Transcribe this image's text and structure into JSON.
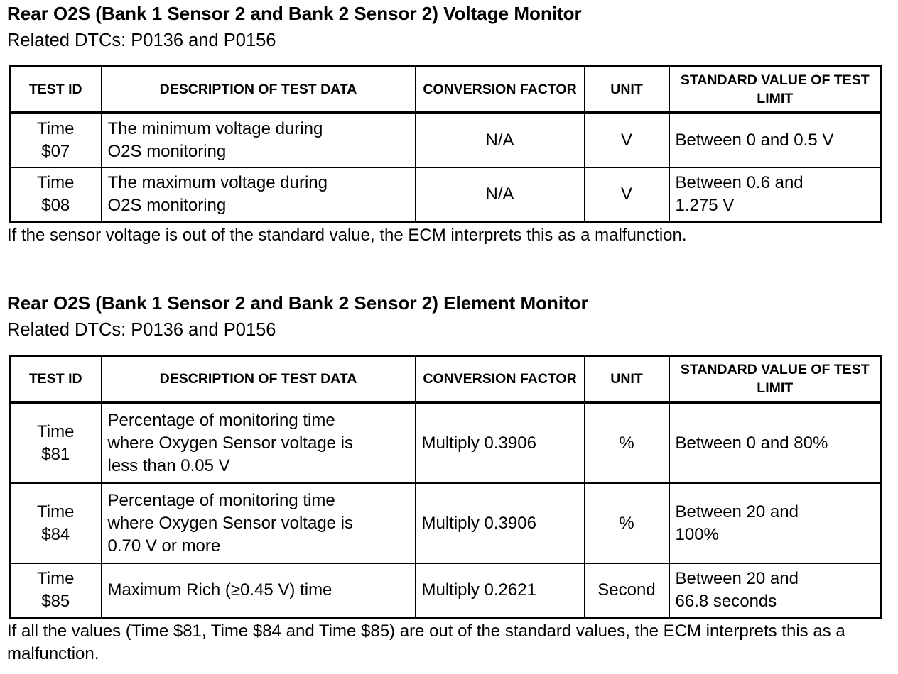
{
  "columns": [
    "TEST ID",
    "DESCRIPTION OF TEST DATA",
    "CONVERSION FACTOR",
    "UNIT",
    "STANDARD VALUE OF TEST LIMIT"
  ],
  "sections": [
    {
      "title": "Rear O2S (Bank 1 Sensor 2 and Bank 2 Sensor 2) Voltage Monitor",
      "subtitle": "Related DTCs: P0136 and P0156",
      "rows": [
        {
          "test_id": [
            "Time",
            "$07"
          ],
          "description": [
            "The minimum voltage during",
            "O2S monitoring"
          ],
          "conversion": "N/A",
          "unit": "V",
          "standard": [
            "Between 0 and 0.5 V"
          ]
        },
        {
          "test_id": [
            "Time",
            "$08"
          ],
          "description": [
            "The maximum voltage during",
            "O2S monitoring"
          ],
          "conversion": "N/A",
          "unit": "V",
          "standard": [
            "Between 0.6 and",
            "1.275 V"
          ]
        }
      ],
      "note": "If the sensor voltage is out of the standard value, the ECM interprets this as a malfunction."
    },
    {
      "title": "Rear O2S (Bank 1 Sensor 2 and Bank 2 Sensor 2) Element Monitor",
      "subtitle": "Related DTCs: P0136 and P0156",
      "rows": [
        {
          "test_id": [
            "Time",
            "$81"
          ],
          "description": [
            "Percentage of monitoring time",
            "where Oxygen Sensor voltage is",
            "less than 0.05 V"
          ],
          "conversion": "Multiply 0.3906",
          "unit": "%",
          "standard": [
            "Between 0 and 80%"
          ]
        },
        {
          "test_id": [
            "Time",
            "$84"
          ],
          "description": [
            "Percentage of monitoring time",
            "where Oxygen Sensor voltage is",
            "0.70 V or more"
          ],
          "conversion": "Multiply 0.3906",
          "unit": "%",
          "standard": [
            "Between 20 and",
            "100%"
          ]
        },
        {
          "test_id": [
            "Time",
            "$85"
          ],
          "description": [
            "Maximum Rich (≥0.45 V) time"
          ],
          "conversion": "Multiply 0.2621",
          "unit": "Second",
          "standard": [
            "Between 20 and",
            "66.8 seconds"
          ]
        }
      ],
      "note": "If all the values (Time $81, Time $84 and Time $85) are out of the standard values, the ECM interprets this as a malfunction."
    }
  ]
}
